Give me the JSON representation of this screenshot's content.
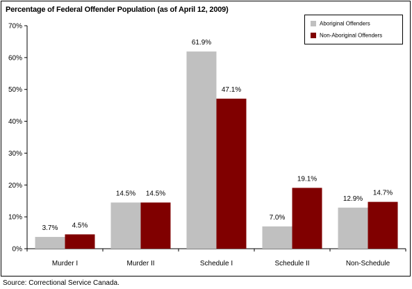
{
  "chart_data": {
    "type": "bar",
    "title": "Percentage of Federal Offender Population (as of April 12, 2009)",
    "categories": [
      "Murder I",
      "Murder II",
      "Schedule I",
      "Schedule II",
      "Non-Schedule"
    ],
    "series": [
      {
        "name": "Aboriginal Offenders",
        "values": [
          3.7,
          14.5,
          61.9,
          7.0,
          12.9
        ],
        "labels": [
          "3.7%",
          "14.5%",
          "61.9%",
          "7.0%",
          "12.9%"
        ],
        "color": "#C0C0C0"
      },
      {
        "name": "Non-Aboriginal Offenders",
        "values": [
          4.5,
          14.5,
          47.1,
          19.1,
          14.7
        ],
        "labels": [
          "4.5%",
          "14.5%",
          "47.1%",
          "19.1%",
          "14.7%"
        ],
        "color": "#800000"
      }
    ],
    "ylim": [
      0,
      70
    ],
    "yticks": [
      "0%",
      "10%",
      "20%",
      "30%",
      "40%",
      "50%",
      "60%",
      "70%"
    ],
    "xlabel": "",
    "ylabel": "",
    "grid": false,
    "legend_position": "top-right"
  },
  "source_note": "Source:  Correctional Service Canada."
}
